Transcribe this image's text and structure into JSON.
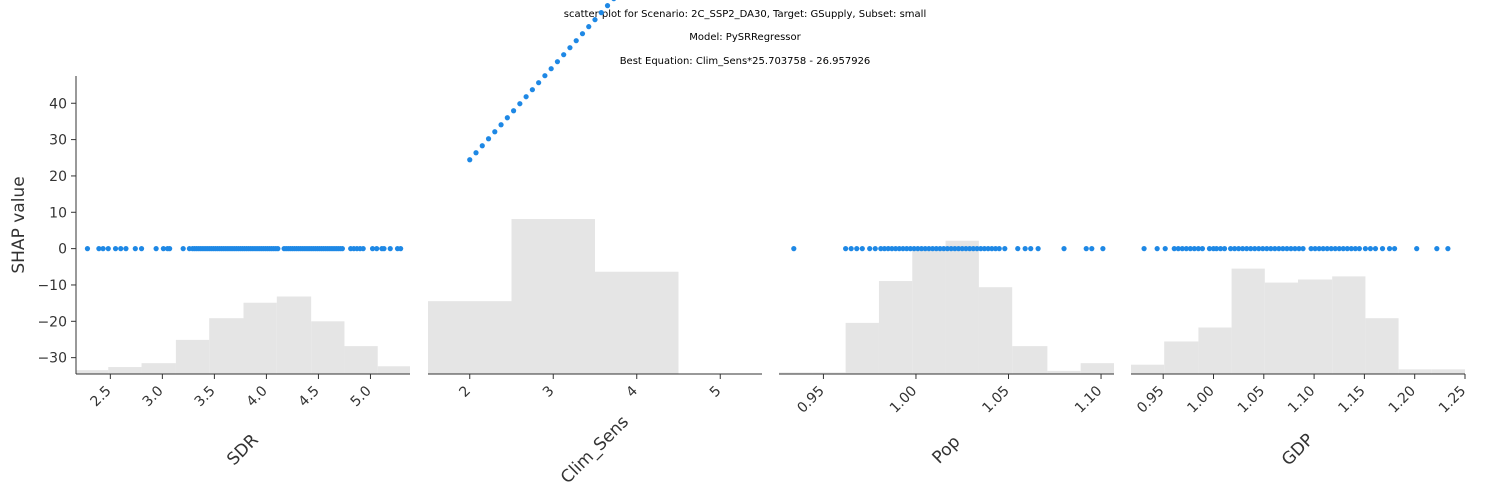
{
  "figure": {
    "title_lines": [
      "scatter plot for Scenario: 2C_SSP2_DA30, Target: GSupply, Subset: small",
      "Model: PySRRegressor",
      "Best Equation: Clim_Sens*25.703758 - 26.957926"
    ],
    "point_color": "#1e88e5",
    "hist_color": "#e5e5e5",
    "axis_color": "#333333"
  },
  "chart_data": [
    {
      "type": "scatter",
      "xlabel": "SDR",
      "ylabel": "SHAP value",
      "xlim": [
        2.17,
        5.38
      ],
      "ylim": [
        -34.5,
        47.5
      ],
      "yticks": [
        -30,
        -20,
        -10,
        0,
        10,
        20,
        30,
        40
      ],
      "ytick_labels": [
        "−30",
        "−20",
        "−10",
        "0",
        "10",
        "20",
        "30",
        "40"
      ],
      "xticks": [
        2.5,
        3.0,
        3.5,
        4.0,
        4.5,
        5.0
      ],
      "xtick_labels": [
        "2.5",
        "3.0",
        "3.5",
        "4.0",
        "4.5",
        "5.0"
      ],
      "x": [
        2.28,
        2.39,
        2.43,
        2.48,
        2.55,
        2.6,
        2.65,
        2.74,
        2.8,
        2.94,
        3.01,
        3.05,
        3.07,
        3.2,
        3.26,
        3.29,
        3.31,
        3.33,
        3.35,
        3.37,
        3.39,
        3.41,
        3.43,
        3.45,
        3.47,
        3.49,
        3.51,
        3.53,
        3.55,
        3.57,
        3.59,
        3.61,
        3.63,
        3.65,
        3.67,
        3.69,
        3.71,
        3.73,
        3.75,
        3.77,
        3.79,
        3.81,
        3.83,
        3.85,
        3.87,
        3.89,
        3.91,
        3.93,
        3.95,
        3.97,
        3.99,
        4.01,
        4.03,
        4.05,
        4.07,
        4.09,
        4.11,
        4.17,
        4.19,
        4.21,
        4.23,
        4.25,
        4.27,
        4.29,
        4.31,
        4.33,
        4.35,
        4.37,
        4.39,
        4.41,
        4.43,
        4.45,
        4.47,
        4.49,
        4.51,
        4.53,
        4.55,
        4.57,
        4.59,
        4.61,
        4.63,
        4.65,
        4.67,
        4.69,
        4.71,
        4.73,
        4.81,
        4.84,
        4.87,
        4.9,
        4.93,
        5.02,
        5.06,
        5.11,
        5.13,
        5.19,
        5.26,
        5.29
      ],
      "y_constant": 0,
      "hist": [
        {
          "x0": 2.17,
          "x1": 2.48,
          "h": 0.025
        },
        {
          "x0": 2.48,
          "x1": 2.8,
          "h": 0.045
        },
        {
          "x0": 2.8,
          "x1": 3.13,
          "h": 0.07
        },
        {
          "x0": 3.13,
          "x1": 3.45,
          "h": 0.22
        },
        {
          "x0": 3.45,
          "x1": 3.78,
          "h": 0.36
        },
        {
          "x0": 3.78,
          "x1": 4.1,
          "h": 0.46
        },
        {
          "x0": 4.1,
          "x1": 4.43,
          "h": 0.5
        },
        {
          "x0": 4.43,
          "x1": 4.75,
          "h": 0.34
        },
        {
          "x0": 4.75,
          "x1": 5.07,
          "h": 0.18
        },
        {
          "x0": 5.07,
          "x1": 5.38,
          "h": 0.05
        }
      ]
    },
    {
      "type": "scatter",
      "xlabel": "Clim_Sens",
      "ylabel": "",
      "xlim": [
        1.5,
        5.5
      ],
      "ylim": [
        -34.5,
        47.5
      ],
      "xticks": [
        2,
        3,
        4,
        5
      ],
      "xtick_labels": [
        "2",
        "3",
        "4",
        "5"
      ],
      "equation": {
        "slope": 25.703758,
        "intercept": -26.957926
      },
      "x_start": 2.0,
      "x_end": 4.9,
      "x_step": 0.075,
      "hist": [
        {
          "x0": 1.5,
          "x1": 2.5,
          "h": 0.47
        },
        {
          "x0": 2.5,
          "x1": 3.5,
          "h": 1.0
        },
        {
          "x0": 3.5,
          "x1": 4.5,
          "h": 0.66
        }
      ]
    },
    {
      "type": "scatter",
      "xlabel": "Pop",
      "ylabel": "",
      "xlim": [
        0.926,
        1.107
      ],
      "ylim": [
        -34.5,
        47.5
      ],
      "xticks": [
        0.95,
        1.0,
        1.05,
        1.1
      ],
      "xtick_labels": [
        "0.95",
        "1.00",
        "1.05",
        "1.10"
      ],
      "x": [
        0.934,
        0.962,
        0.965,
        0.968,
        0.971,
        0.975,
        0.978,
        0.981,
        0.983,
        0.985,
        0.987,
        0.989,
        0.991,
        0.993,
        0.995,
        0.997,
        0.999,
        1.001,
        1.003,
        1.005,
        1.007,
        1.009,
        1.011,
        1.013,
        1.015,
        1.017,
        1.019,
        1.021,
        1.023,
        1.025,
        1.027,
        1.029,
        1.031,
        1.033,
        1.035,
        1.037,
        1.039,
        1.041,
        1.043,
        1.045,
        1.048,
        1.055,
        1.059,
        1.062,
        1.066,
        1.08,
        1.092,
        1.095,
        1.101
      ],
      "y_constant": 0,
      "hist": [
        {
          "x0": 0.926,
          "x1": 0.944,
          "h": 0.01
        },
        {
          "x0": 0.944,
          "x1": 0.962,
          "h": 0.01
        },
        {
          "x0": 0.962,
          "x1": 0.98,
          "h": 0.33
        },
        {
          "x0": 0.98,
          "x1": 0.998,
          "h": 0.6
        },
        {
          "x0": 0.998,
          "x1": 1.016,
          "h": 0.82
        },
        {
          "x0": 1.016,
          "x1": 1.034,
          "h": 0.86
        },
        {
          "x0": 1.034,
          "x1": 1.052,
          "h": 0.56
        },
        {
          "x0": 1.052,
          "x1": 1.071,
          "h": 0.18
        },
        {
          "x0": 1.071,
          "x1": 1.089,
          "h": 0.02
        },
        {
          "x0": 1.089,
          "x1": 1.107,
          "h": 0.07
        }
      ]
    },
    {
      "type": "scatter",
      "xlabel": "GDP",
      "ylabel": "",
      "xlim": [
        0.918,
        1.25
      ],
      "ylim": [
        -34.5,
        47.5
      ],
      "xticks": [
        0.95,
        1.0,
        1.05,
        1.1,
        1.15,
        1.2,
        1.25
      ],
      "xtick_labels": [
        "0.95",
        "1.00",
        "1.05",
        "1.10",
        "1.15",
        "1.20",
        "1.25"
      ],
      "x": [
        0.931,
        0.944,
        0.952,
        0.961,
        0.965,
        0.969,
        0.973,
        0.977,
        0.981,
        0.985,
        0.989,
        0.996,
        1.0,
        1.003,
        1.007,
        1.011,
        1.017,
        1.021,
        1.025,
        1.029,
        1.033,
        1.037,
        1.041,
        1.045,
        1.049,
        1.053,
        1.057,
        1.061,
        1.065,
        1.069,
        1.073,
        1.077,
        1.081,
        1.085,
        1.089,
        1.097,
        1.101,
        1.105,
        1.109,
        1.113,
        1.117,
        1.121,
        1.125,
        1.129,
        1.133,
        1.137,
        1.141,
        1.145,
        1.151,
        1.156,
        1.161,
        1.168,
        1.175,
        1.18,
        1.202,
        1.222,
        1.233
      ],
      "y_constant": 0,
      "hist": [
        {
          "x0": 0.918,
          "x1": 0.951,
          "h": 0.06
        },
        {
          "x0": 0.951,
          "x1": 0.985,
          "h": 0.21
        },
        {
          "x0": 0.985,
          "x1": 1.018,
          "h": 0.3
        },
        {
          "x0": 1.018,
          "x1": 1.051,
          "h": 0.68
        },
        {
          "x0": 1.051,
          "x1": 1.084,
          "h": 0.59
        },
        {
          "x0": 1.084,
          "x1": 1.118,
          "h": 0.61
        },
        {
          "x0": 1.118,
          "x1": 1.151,
          "h": 0.63
        },
        {
          "x0": 1.151,
          "x1": 1.184,
          "h": 0.36
        },
        {
          "x0": 1.184,
          "x1": 1.217,
          "h": 0.03
        },
        {
          "x0": 1.217,
          "x1": 1.25,
          "h": 0.03
        }
      ]
    }
  ]
}
